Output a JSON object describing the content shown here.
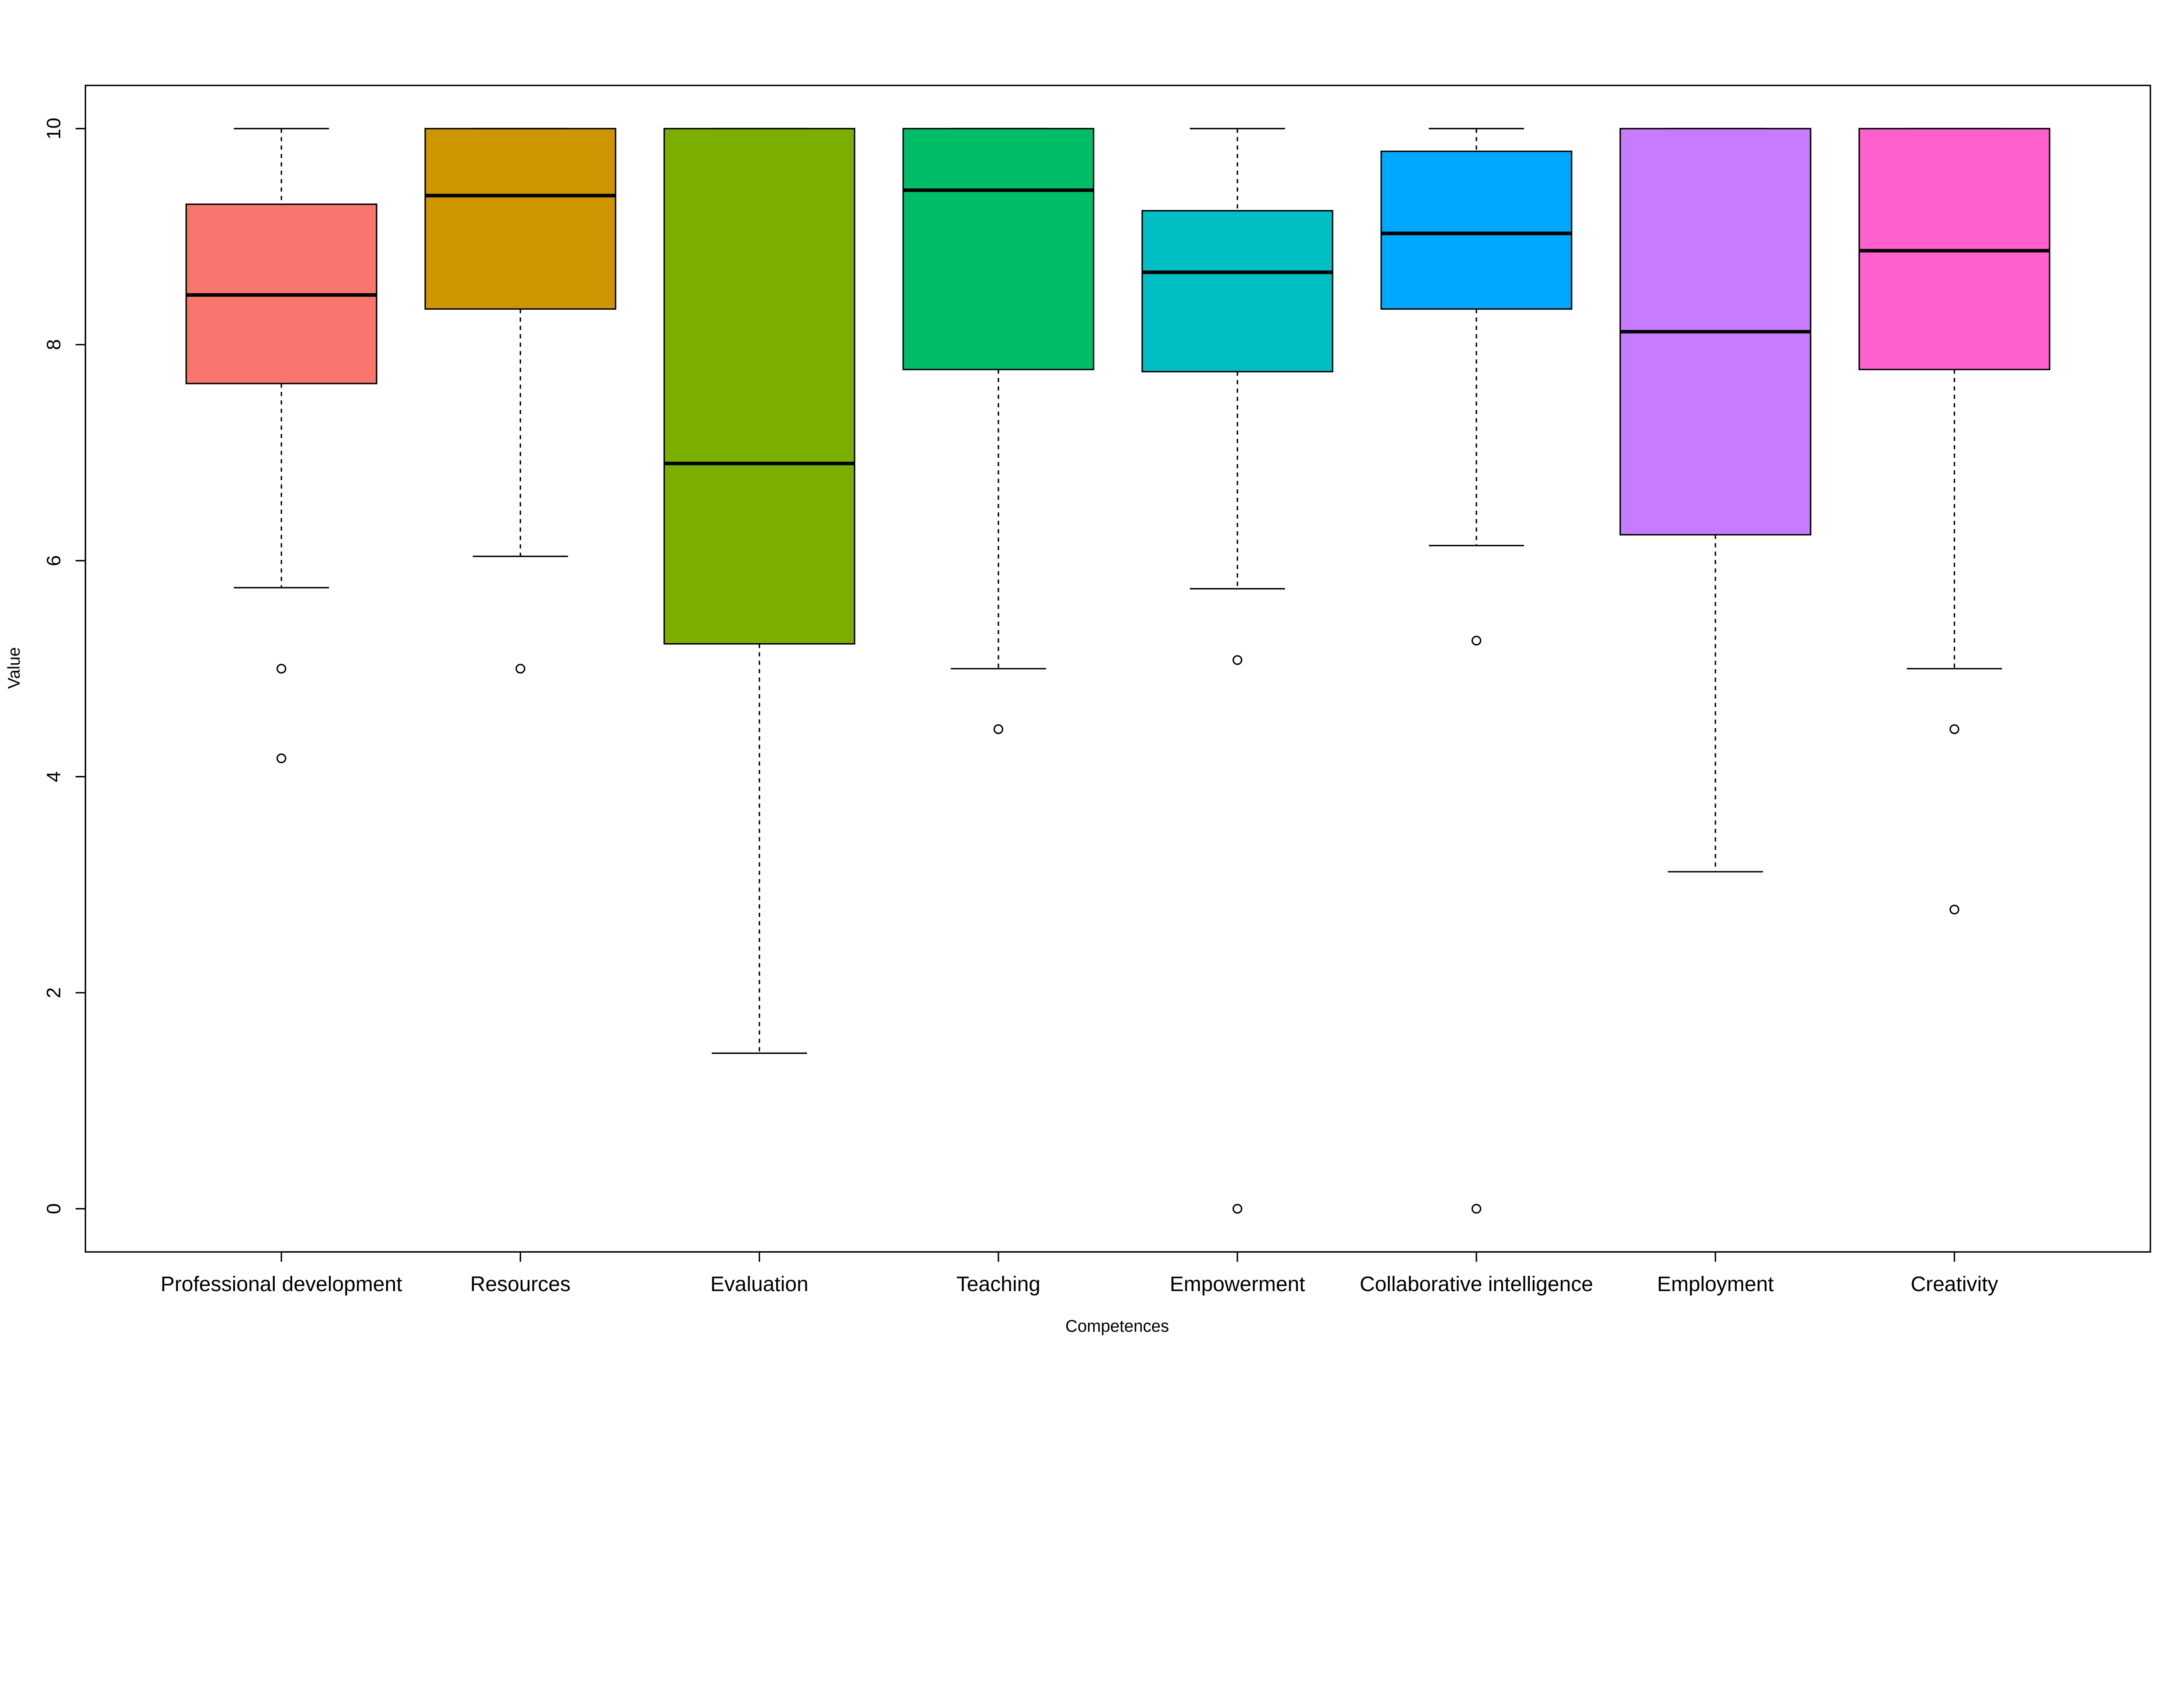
{
  "chart_data": {
    "type": "boxplot",
    "title": "",
    "xlabel": "Competences",
    "ylabel": "Value",
    "ylim": [
      -0.4,
      10.4
    ],
    "yticks": [
      0,
      2,
      4,
      6,
      8,
      10
    ],
    "ytick_labels": [
      "0",
      "2",
      "4",
      "6",
      "8",
      "10"
    ],
    "grid": false,
    "categories": [
      "Professional development",
      "Resources",
      "Evaluation",
      "Teaching",
      "Empowerment",
      "Collaborative intelligence",
      "Employment",
      "Creativity"
    ],
    "colors": [
      "#F8766D",
      "#CD9600",
      "#7CAE00",
      "#00BE67",
      "#00BFC4",
      "#00A9FF",
      "#C77CFF",
      "#FF61CC"
    ],
    "boxes": [
      {
        "whisker_low": 5.75,
        "q1": 7.64,
        "median": 8.46,
        "q3": 9.3,
        "whisker_high": 10,
        "outliers": [
          5.0,
          4.17
        ]
      },
      {
        "whisker_low": 6.04,
        "q1": 8.33,
        "median": 9.38,
        "q3": 10,
        "whisker_high": 10,
        "outliers": [
          5.0
        ]
      },
      {
        "whisker_low": 1.44,
        "q1": 5.23,
        "median": 6.9,
        "q3": 10,
        "whisker_high": 10,
        "outliers": []
      },
      {
        "whisker_low": 5.0,
        "q1": 7.77,
        "median": 9.43,
        "q3": 10,
        "whisker_high": 10,
        "outliers": [
          4.44
        ]
      },
      {
        "whisker_low": 5.74,
        "q1": 7.75,
        "median": 8.67,
        "q3": 9.24,
        "whisker_high": 10,
        "outliers": [
          5.08,
          0
        ]
      },
      {
        "whisker_low": 6.14,
        "q1": 8.33,
        "median": 9.03,
        "q3": 9.79,
        "whisker_high": 10,
        "outliers": [
          5.26,
          0
        ]
      },
      {
        "whisker_low": 3.12,
        "q1": 6.24,
        "median": 8.12,
        "q3": 10,
        "whisker_high": 10,
        "outliers": []
      },
      {
        "whisker_low": 5.0,
        "q1": 7.77,
        "median": 8.87,
        "q3": 10,
        "whisker_high": 10,
        "outliers": [
          4.44,
          2.77
        ]
      }
    ]
  }
}
